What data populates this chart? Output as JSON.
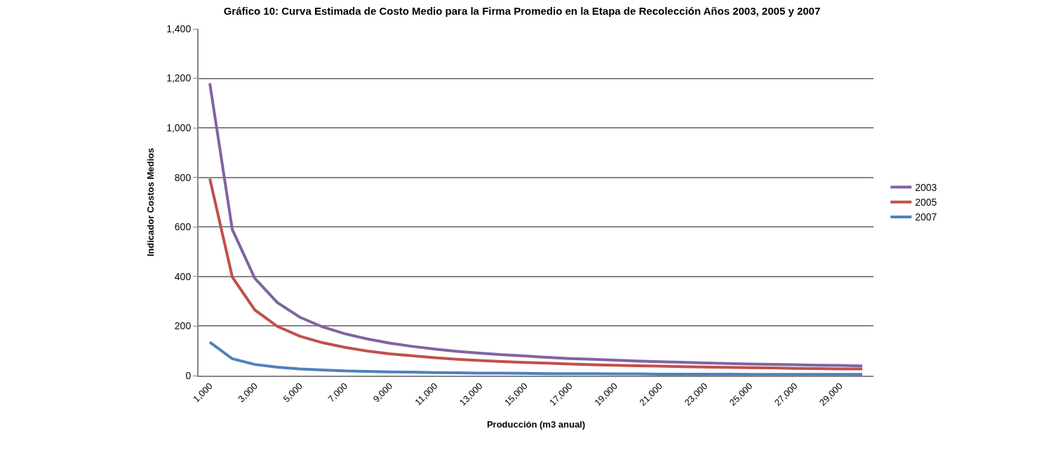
{
  "chart_data": {
    "type": "line",
    "title": "Gráfico 10: Curva Estimada de Costo Medio para la Firma Promedio en la Etapa de Recolección Años 2003, 2005 y 2007",
    "xlabel": "Producción (m3 anual)",
    "ylabel": "Indicador Costos Medios",
    "categories": [
      "1,000",
      null,
      "3,000",
      null,
      "5,000",
      null,
      "7,000",
      null,
      "9,000",
      null,
      "11,000",
      null,
      "13,000",
      null,
      "15,000",
      null,
      "17,000",
      null,
      "19,000",
      null,
      "21,000",
      null,
      "23,000",
      null,
      "25,000",
      null,
      "27,000",
      null,
      "29,000",
      null
    ],
    "series": [
      {
        "name": "2003",
        "color": "#8064a2",
        "values": [
          1180,
          590,
          393,
          295,
          236,
          197,
          169,
          148,
          131,
          118,
          107,
          98,
          91,
          84,
          79,
          74,
          69,
          66,
          62,
          59,
          56,
          54,
          51,
          49,
          47,
          45,
          44,
          42,
          41,
          39
        ]
      },
      {
        "name": "2005",
        "color": "#c0504d",
        "values": [
          795,
          398,
          265,
          199,
          159,
          133,
          114,
          99,
          88,
          80,
          72,
          66,
          61,
          57,
          53,
          50,
          47,
          44,
          42,
          40,
          38,
          36,
          35,
          33,
          32,
          31,
          29,
          28,
          27,
          27
        ]
      },
      {
        "name": "2007",
        "color": "#4f81bd",
        "values": [
          135,
          68,
          45,
          34,
          27,
          23,
          19,
          17,
          15,
          14,
          12,
          11,
          10,
          10,
          9,
          8,
          8,
          8,
          7,
          7,
          6,
          6,
          6,
          6,
          5,
          5,
          5,
          5,
          5,
          5
        ]
      }
    ],
    "ylim": [
      0,
      1400
    ],
    "yticks": [
      {
        "value": 0,
        "label": "0"
      },
      {
        "value": 200,
        "label": "200"
      },
      {
        "value": 400,
        "label": "400"
      },
      {
        "value": 600,
        "label": "600"
      },
      {
        "value": 800,
        "label": "800"
      },
      {
        "value": 1000,
        "label": "1,000"
      },
      {
        "value": 1200,
        "label": "1,200"
      },
      {
        "value": 1400,
        "label": "1,400"
      }
    ],
    "grid": "y",
    "legend": "right",
    "marker": "none",
    "line_style": "solid"
  }
}
